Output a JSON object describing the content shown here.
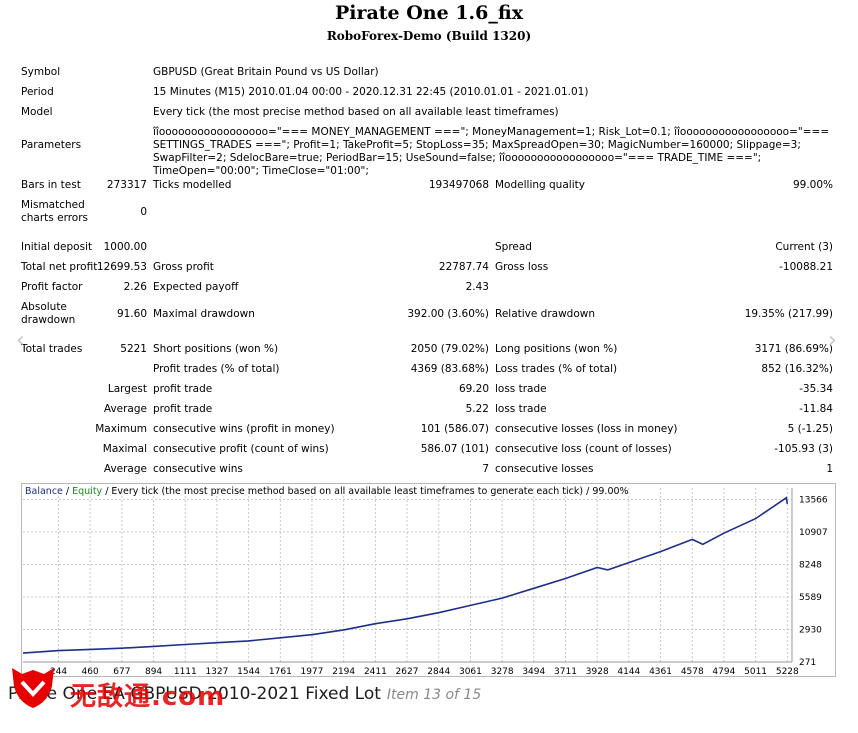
{
  "report": {
    "title": "Pirate One 1.6_fix",
    "subtitle": "RoboForex-Demo (Build 1320)"
  },
  "summary": {
    "symbol_label": "Symbol",
    "symbol_value": "GBPUSD (Great Britain Pound vs US Dollar)",
    "period_label": "Period",
    "period_value": "15 Minutes (M15) 2010.01.04 00:00 - 2020.12.31 22:45 (2010.01.01 - 2021.01.01)",
    "model_label": "Model",
    "model_value": "Every tick (the most precise method based on all available least timeframes)",
    "parameters_label": "Parameters",
    "parameters_value": "îîooooooooooooooooo=\"=== MONEY_MANAGEMENT ===\"; MoneyManagement=1; Risk_Lot=0.1; îîooooooooooooooooo=\"=== SETTINGS_TRADES ===\"; Profit=1; TakeProfit=5; StopLoss=35; MaxSpreadOpen=30; MagicNumber=160000; Slippage=3; SwapFilter=2; SdelocBare=true; PeriodBar=15; UseSound=false; îîooooooooooooooooo=\"=== TRADE_TIME ===\"; TimeOpen=\"00:00\"; TimeClose=\"01:00\";",
    "bars_label": "Bars in test",
    "bars_value": "273317",
    "ticks_label": "Ticks modelled",
    "ticks_value": "193497068",
    "quality_label": "Modelling quality",
    "quality_value": "99.00%",
    "mismatch_label_1": "Mismatched",
    "mismatch_label_2": "charts errors",
    "mismatch_value": "0",
    "deposit_label": "Initial deposit",
    "deposit_value": "1000.00",
    "spread_label": "Spread",
    "spread_value": "Current (3)",
    "net_label": "Total net profit",
    "net_value": "12699.53",
    "gross_profit_label": "Gross profit",
    "gross_profit_value": "22787.74",
    "gross_loss_label": "Gross loss",
    "gross_loss_value": "-10088.21",
    "pf_label": "Profit factor",
    "pf_value": "2.26",
    "payoff_label": "Expected payoff",
    "payoff_value": "2.43",
    "abs_dd_label_1": "Absolute",
    "abs_dd_label_2": "drawdown",
    "abs_dd_value": "91.60",
    "max_dd_label": "Maximal drawdown",
    "max_dd_value": "392.00 (3.60%)",
    "rel_dd_label": "Relative drawdown",
    "rel_dd_value": "19.35% (217.99)",
    "trades_label": "Total trades",
    "trades_value": "5221",
    "short_label": "Short positions (won %)",
    "short_value": "2050 (79.02%)",
    "long_label": "Long positions (won %)",
    "long_value": "3171 (86.69%)",
    "profit_trades_label": "Profit trades (% of total)",
    "profit_trades_value": "4369 (83.68%)",
    "loss_trades_label": "Loss trades (% of total)",
    "loss_trades_value": "852 (16.32%)",
    "largest_label": "Largest",
    "largest_profit_label": "profit trade",
    "largest_profit_value": "69.20",
    "largest_loss_label": "loss trade",
    "largest_loss_value": "-35.34",
    "average_label": "Average",
    "average_profit_label": "profit trade",
    "average_profit_value": "5.22",
    "average_loss_label": "loss trade",
    "average_loss_value": "-11.84",
    "maximum_label": "Maximum",
    "max_wins_label": "consecutive wins (profit in money)",
    "max_wins_value": "101 (586.07)",
    "max_losses_label": "consecutive losses (loss in money)",
    "max_losses_value": "5 (-1.25)",
    "maximal_label": "Maximal",
    "maximal_profit_label": "consecutive profit (count of wins)",
    "maximal_profit_value": "586.07 (101)",
    "maximal_loss_label": "consecutive loss (count of losses)",
    "maximal_loss_value": "-105.93 (3)",
    "avg2_label": "Average",
    "avg_wins_label": "consecutive wins",
    "avg_wins_value": "7",
    "avg_losses_label": "consecutive losses",
    "avg_losses_value": "1"
  },
  "chart_legend": {
    "balance": "Balance",
    "sep": " / ",
    "equity": "Equity",
    "rest": " / Every tick (the most precise method based on all available least timeframes to generate each tick) / 99.00%"
  },
  "caption": {
    "text": "Pirate One EA GBPUSD 2010-2021 Fixed Lot",
    "item": "Item 13 of 15"
  },
  "watermark": {
    "text": "无敌通.com",
    "color": "#e60000"
  },
  "colors": {
    "balance": "#1e2f8a",
    "equity": "#1a8a1a",
    "grid": "#c8c8c8"
  },
  "chart_data": {
    "type": "line",
    "x_ticks": [
      "244",
      "460",
      "677",
      "894",
      "1111",
      "1327",
      "1544",
      "1761",
      "1977",
      "2194",
      "2411",
      "2627",
      "2844",
      "3061",
      "3278",
      "3494",
      "3711",
      "3928",
      "4144",
      "4361",
      "4578",
      "4794",
      "5011",
      "5228"
    ],
    "y_ticks": [
      "13566",
      "10907",
      "8248",
      "5589",
      "2930",
      "271"
    ],
    "ylim": [
      271,
      14500
    ],
    "xlim": [
      1,
      5260
    ],
    "grid": true,
    "series": [
      {
        "name": "Balance",
        "x": [
          1,
          244,
          460,
          677,
          894,
          1111,
          1327,
          1544,
          1761,
          1977,
          2194,
          2411,
          2627,
          2844,
          3061,
          3278,
          3494,
          3711,
          3928,
          4000,
          4144,
          4361,
          4578,
          4650,
          4794,
          5011,
          5228,
          5221
        ],
        "values": [
          1000,
          1200,
          1300,
          1400,
          1550,
          1700,
          1850,
          2000,
          2250,
          2500,
          2900,
          3400,
          3800,
          4300,
          4900,
          5500,
          6300,
          7100,
          8000,
          7800,
          8400,
          9300,
          10300,
          9900,
          10800,
          12000,
          13200,
          13700
        ]
      }
    ]
  }
}
